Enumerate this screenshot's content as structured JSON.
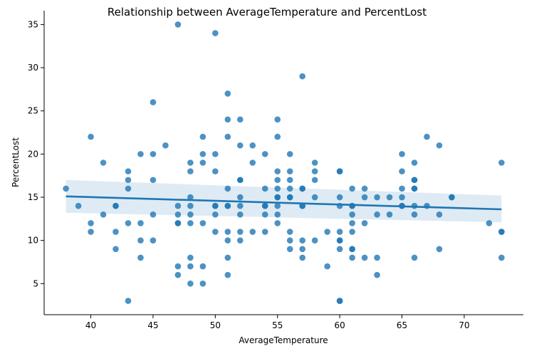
{
  "chart_data": {
    "type": "scatter",
    "title": "Relationship between AverageTemperature and PercentLost",
    "xlabel": "AverageTemperature",
    "ylabel": "PercentLost",
    "xlim": [
      36.25,
      74.75
    ],
    "ylim": [
      1.4,
      36.6
    ],
    "xticks": [
      40,
      45,
      50,
      55,
      60,
      65,
      70
    ],
    "yticks": [
      5,
      10,
      15,
      20,
      25,
      30,
      35
    ],
    "grid": false,
    "legend": "none",
    "colors": {
      "points": "#1f77b4",
      "line": "#1f77b4",
      "band": "#1f77b4"
    },
    "regression": {
      "x": [
        38,
        73
      ],
      "y": [
        15.1,
        13.6
      ],
      "ci_lower": [
        13.2,
        12.1
      ],
      "ci_upper": [
        17.0,
        15.2
      ]
    },
    "points": [
      [
        38,
        16
      ],
      [
        39,
        14
      ],
      [
        40,
        22
      ],
      [
        40,
        12
      ],
      [
        40,
        11
      ],
      [
        41,
        19
      ],
      [
        41,
        13
      ],
      [
        42,
        14
      ],
      [
        42,
        14
      ],
      [
        42,
        11
      ],
      [
        42,
        9
      ],
      [
        43,
        18
      ],
      [
        43,
        17
      ],
      [
        43,
        16
      ],
      [
        43,
        12
      ],
      [
        43,
        3
      ],
      [
        44,
        20
      ],
      [
        44,
        12
      ],
      [
        44,
        10
      ],
      [
        44,
        8
      ],
      [
        45,
        26
      ],
      [
        45,
        20
      ],
      [
        45,
        17
      ],
      [
        45,
        13
      ],
      [
        45,
        10
      ],
      [
        46,
        21
      ],
      [
        47,
        35
      ],
      [
        47,
        14
      ],
      [
        47,
        13
      ],
      [
        47,
        12
      ],
      [
        47,
        12
      ],
      [
        47,
        7
      ],
      [
        47,
        6
      ],
      [
        48,
        19
      ],
      [
        48,
        18
      ],
      [
        48,
        15
      ],
      [
        48,
        14
      ],
      [
        48,
        13
      ],
      [
        48,
        12
      ],
      [
        48,
        8
      ],
      [
        48,
        7
      ],
      [
        48,
        5
      ],
      [
        49,
        22
      ],
      [
        49,
        20
      ],
      [
        49,
        19
      ],
      [
        49,
        12
      ],
      [
        49,
        7
      ],
      [
        49,
        5
      ],
      [
        50,
        34
      ],
      [
        50,
        20
      ],
      [
        50,
        18
      ],
      [
        50,
        14
      ],
      [
        50,
        14
      ],
      [
        50,
        13
      ],
      [
        50,
        11
      ],
      [
        51,
        27
      ],
      [
        51,
        24
      ],
      [
        51,
        22
      ],
      [
        51,
        16
      ],
      [
        51,
        14
      ],
      [
        51,
        14
      ],
      [
        51,
        11
      ],
      [
        51,
        10
      ],
      [
        51,
        8
      ],
      [
        51,
        6
      ],
      [
        52,
        24
      ],
      [
        52,
        21
      ],
      [
        52,
        17
      ],
      [
        52,
        17
      ],
      [
        52,
        15
      ],
      [
        52,
        14
      ],
      [
        52,
        13
      ],
      [
        52,
        11
      ],
      [
        52,
        10
      ],
      [
        53,
        21
      ],
      [
        53,
        19
      ],
      [
        53,
        11
      ],
      [
        54,
        20
      ],
      [
        54,
        16
      ],
      [
        54,
        14
      ],
      [
        54,
        14
      ],
      [
        54,
        13
      ],
      [
        54,
        11
      ],
      [
        55,
        24
      ],
      [
        55,
        22
      ],
      [
        55,
        18
      ],
      [
        55,
        17
      ],
      [
        55,
        16
      ],
      [
        55,
        15
      ],
      [
        55,
        15
      ],
      [
        55,
        14
      ],
      [
        55,
        13
      ],
      [
        55,
        12
      ],
      [
        56,
        20
      ],
      [
        56,
        18
      ],
      [
        56,
        17
      ],
      [
        56,
        16
      ],
      [
        56,
        15
      ],
      [
        56,
        15
      ],
      [
        56,
        11
      ],
      [
        56,
        10
      ],
      [
        56,
        9
      ],
      [
        57,
        29
      ],
      [
        57,
        16
      ],
      [
        57,
        16
      ],
      [
        57,
        14
      ],
      [
        57,
        14
      ],
      [
        57,
        10
      ],
      [
        57,
        9
      ],
      [
        57,
        8
      ],
      [
        58,
        19
      ],
      [
        58,
        18
      ],
      [
        58,
        17
      ],
      [
        58,
        15
      ],
      [
        58,
        10
      ],
      [
        59,
        11
      ],
      [
        59,
        7
      ],
      [
        60,
        18
      ],
      [
        60,
        18
      ],
      [
        60,
        15
      ],
      [
        60,
        14
      ],
      [
        60,
        11
      ],
      [
        60,
        10
      ],
      [
        60,
        10
      ],
      [
        60,
        9
      ],
      [
        60,
        3
      ],
      [
        60,
        3
      ],
      [
        61,
        16
      ],
      [
        61,
        14
      ],
      [
        61,
        14
      ],
      [
        61,
        13
      ],
      [
        61,
        12
      ],
      [
        61,
        11
      ],
      [
        61,
        9
      ],
      [
        61,
        9
      ],
      [
        61,
        8
      ],
      [
        62,
        16
      ],
      [
        62,
        15
      ],
      [
        62,
        12
      ],
      [
        62,
        8
      ],
      [
        63,
        15
      ],
      [
        63,
        13
      ],
      [
        63,
        8
      ],
      [
        63,
        6
      ],
      [
        64,
        15
      ],
      [
        64,
        13
      ],
      [
        65,
        20
      ],
      [
        65,
        18
      ],
      [
        65,
        16
      ],
      [
        65,
        15
      ],
      [
        65,
        14
      ],
      [
        65,
        14
      ],
      [
        66,
        19
      ],
      [
        66,
        17
      ],
      [
        66,
        17
      ],
      [
        66,
        16
      ],
      [
        66,
        16
      ],
      [
        66,
        14
      ],
      [
        66,
        13
      ],
      [
        66,
        8
      ],
      [
        67,
        22
      ],
      [
        67,
        14
      ],
      [
        68,
        21
      ],
      [
        68,
        13
      ],
      [
        68,
        9
      ],
      [
        69,
        15
      ],
      [
        69,
        15
      ],
      [
        72,
        12
      ],
      [
        73,
        19
      ],
      [
        73,
        11
      ],
      [
        73,
        11
      ],
      [
        73,
        8
      ]
    ]
  }
}
